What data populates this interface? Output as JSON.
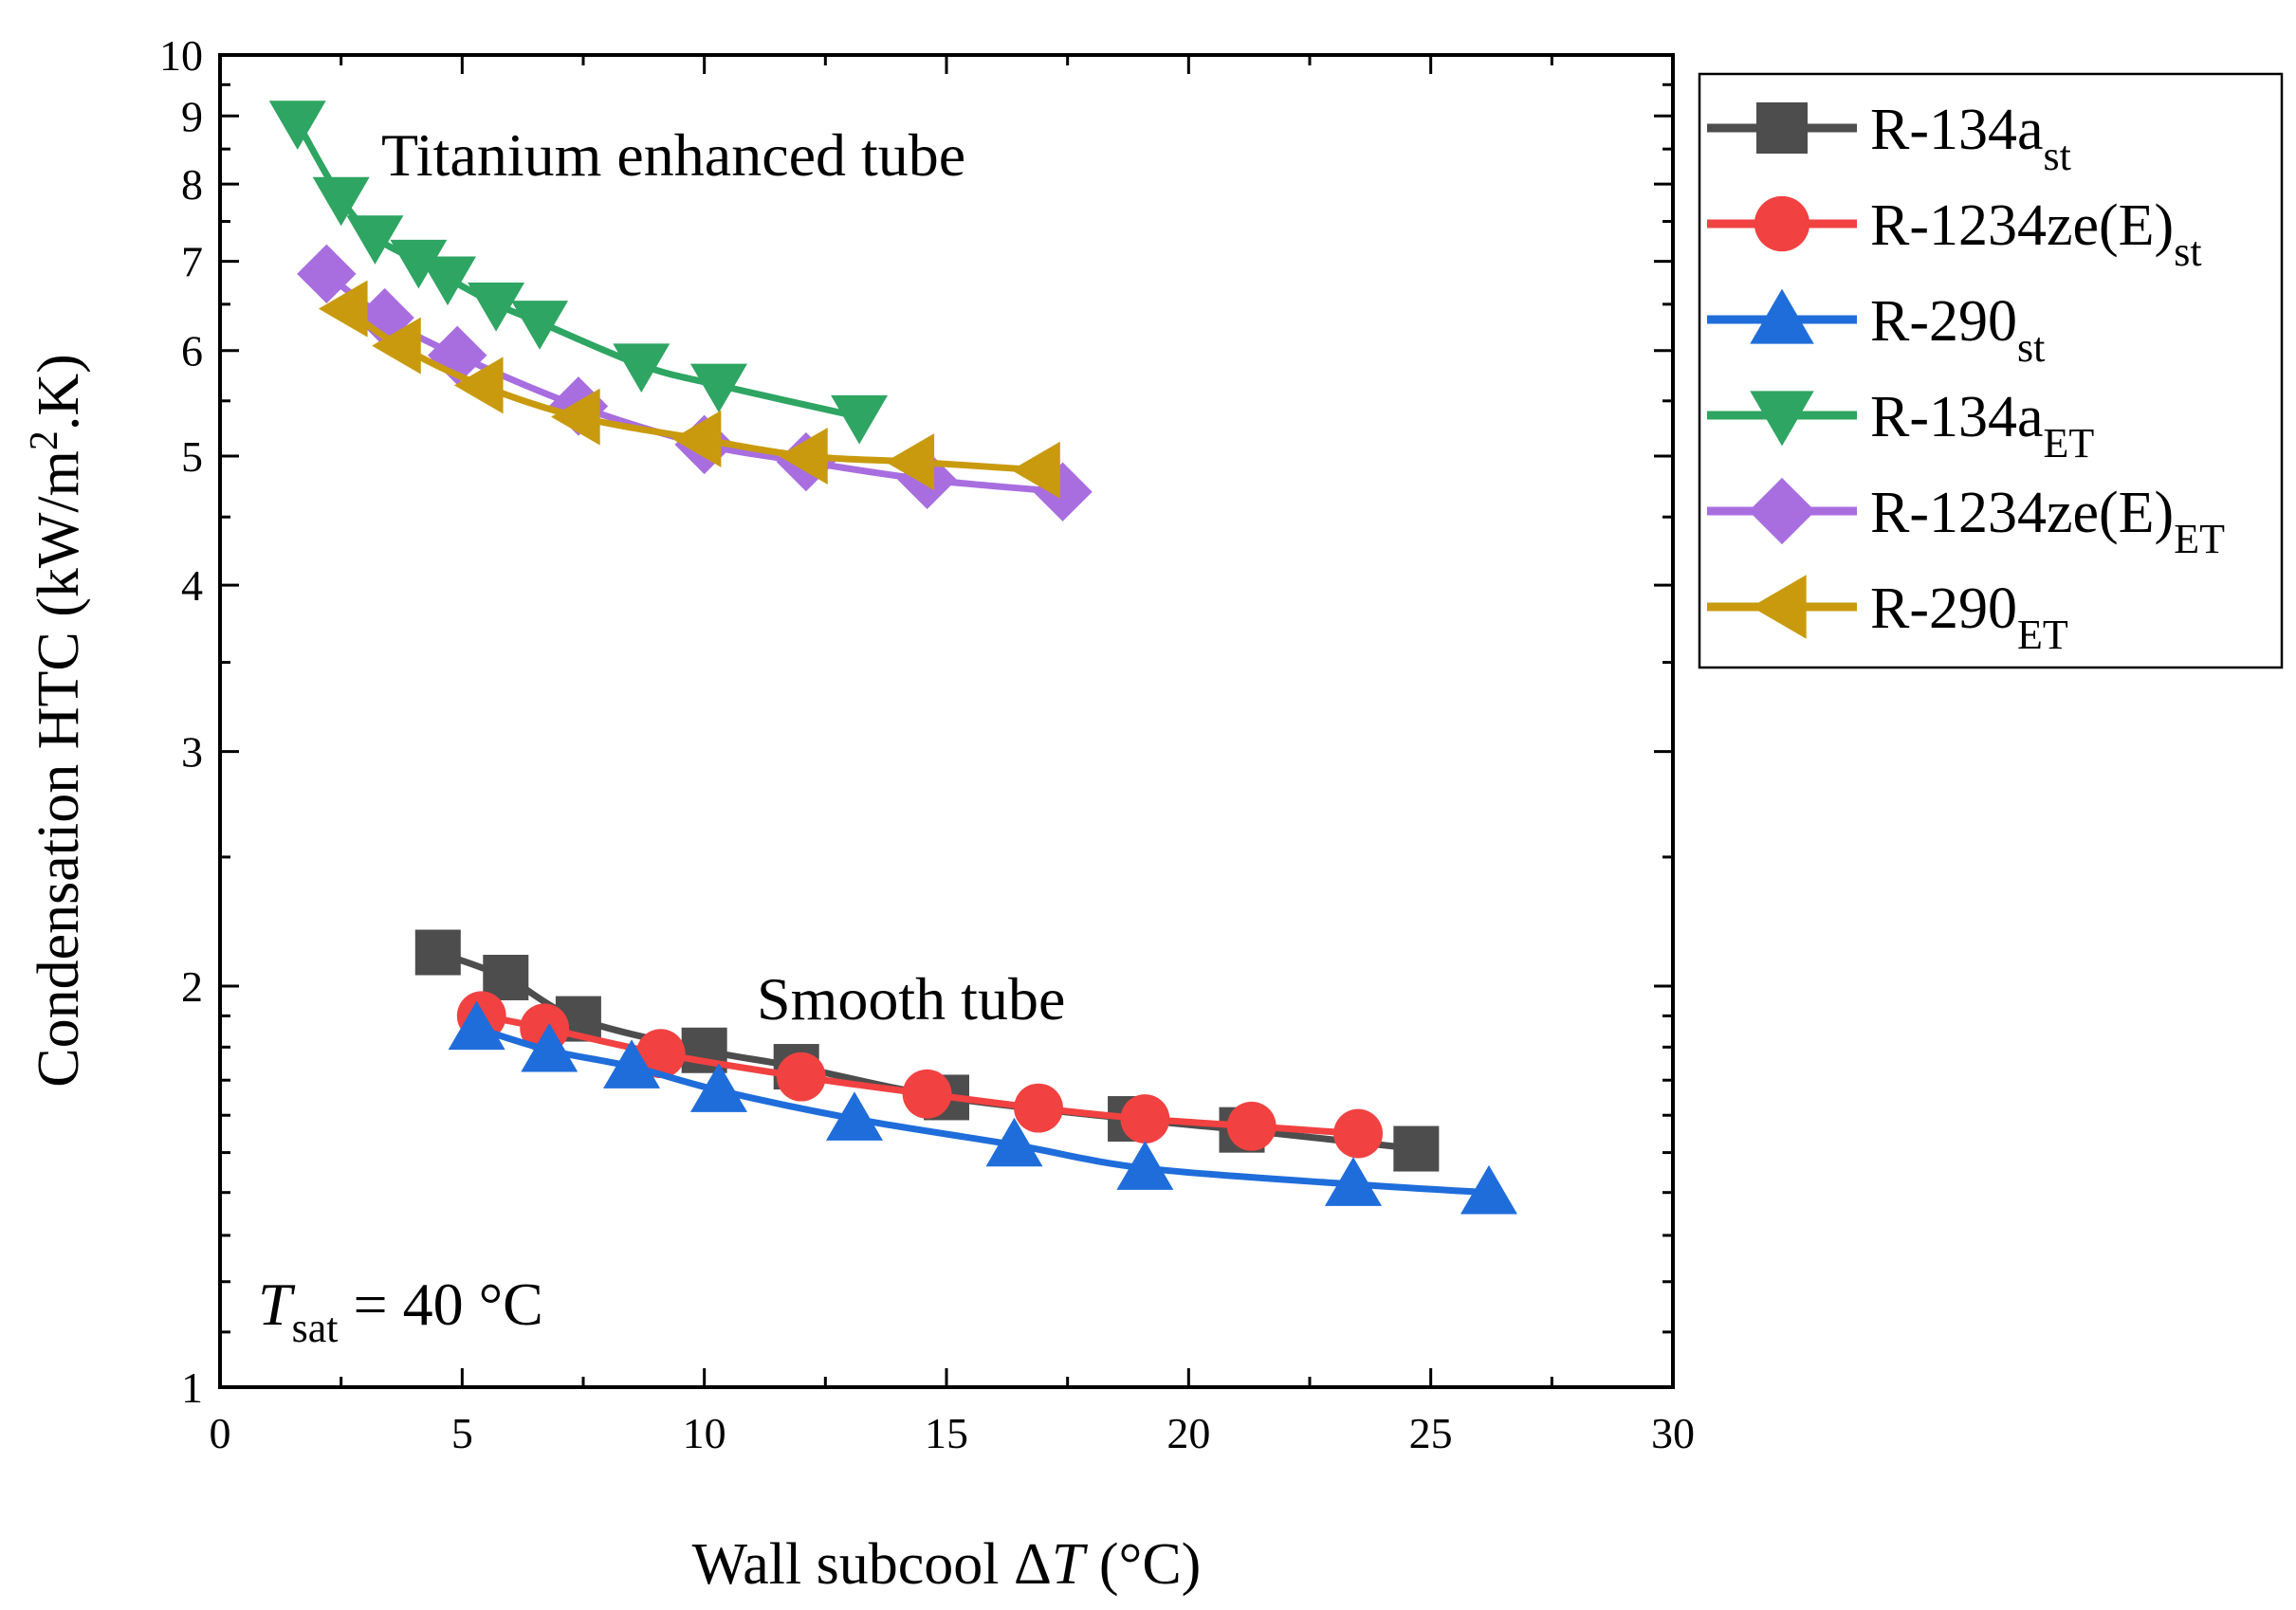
{
  "chart_data": {
    "type": "line",
    "title": "",
    "xlabel": {
      "prefix": "Wall subcool Δ",
      "italic": "T",
      "suffix": " (°C)"
    },
    "ylabel": {
      "prefix": "Condensation HTC (kW/m",
      "sup": "2",
      "suffix": ".K)"
    },
    "xlim": [
      0,
      30
    ],
    "ylim": [
      1,
      10
    ],
    "yscale": "log",
    "xticks": [
      "0",
      "5",
      "10",
      "15",
      "20",
      "25",
      "30"
    ],
    "yticks": [
      "1",
      "2",
      "3",
      "4",
      "5",
      "6",
      "7",
      "8",
      "9",
      "10"
    ],
    "grid": false,
    "legend_position": "outside-right-top",
    "annotations": {
      "enhanced": "Titanium enhanced tube",
      "smooth": "Smooth tube",
      "tsat": {
        "var": "T",
        "sub": "sat",
        "rest": " = 40 °C"
      }
    },
    "series": [
      {
        "name": "R-134a",
        "sub": "st",
        "marker": "square",
        "color": "#4d4d4d",
        "x": [
          4.5,
          5.9,
          7.4,
          10.0,
          11.9,
          15.0,
          18.8,
          21.1,
          24.7
        ],
        "y": [
          2.12,
          2.03,
          1.89,
          1.79,
          1.74,
          1.65,
          1.59,
          1.56,
          1.51
        ]
      },
      {
        "name": "R-1234ze(E)",
        "sub": "st",
        "marker": "circle",
        "color": "#f24141",
        "x": [
          5.4,
          6.7,
          9.1,
          12.0,
          14.6,
          16.9,
          19.1,
          21.3,
          23.5
        ],
        "y": [
          1.9,
          1.86,
          1.78,
          1.71,
          1.66,
          1.62,
          1.59,
          1.57,
          1.55
        ]
      },
      {
        "name": "R-290",
        "sub": "st",
        "marker": "triangle-up",
        "color": "#1f6ddb",
        "x": [
          5.3,
          6.8,
          8.5,
          10.3,
          13.1,
          16.4,
          19.1,
          23.4,
          26.2
        ],
        "y": [
          1.86,
          1.79,
          1.74,
          1.67,
          1.59,
          1.52,
          1.46,
          1.42,
          1.4
        ]
      },
      {
        "name": "R-134a",
        "sub": "ET",
        "marker": "triangle-down",
        "color": "#2ea562",
        "x": [
          1.6,
          2.5,
          3.2,
          4.1,
          4.7,
          5.7,
          6.6,
          8.7,
          10.3,
          13.2
        ],
        "y": [
          8.9,
          7.8,
          7.3,
          7.0,
          6.8,
          6.5,
          6.3,
          5.85,
          5.65,
          5.35
        ]
      },
      {
        "name": "R-1234ze(E)",
        "sub": "ET",
        "marker": "diamond",
        "color": "#a86ee0",
        "x": [
          2.2,
          3.4,
          4.9,
          7.4,
          10.0,
          12.1,
          14.6,
          17.4
        ],
        "y": [
          6.85,
          6.35,
          5.95,
          5.45,
          5.1,
          4.95,
          4.8,
          4.7
        ]
      },
      {
        "name": "R-290",
        "sub": "ET",
        "marker": "triangle-left",
        "color": "#c99a0e",
        "x": [
          2.6,
          3.7,
          5.4,
          7.4,
          9.9,
          12.1,
          14.3,
          16.9
        ],
        "y": [
          6.45,
          6.05,
          5.65,
          5.35,
          5.15,
          5.0,
          4.95,
          4.88
        ]
      }
    ]
  }
}
